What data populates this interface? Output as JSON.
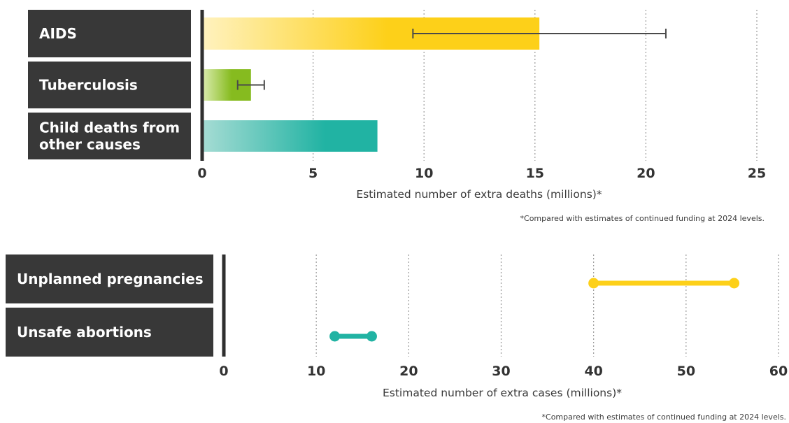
{
  "colors": {
    "label_bg": "#383838",
    "axis": "#2f2f2f",
    "grid": "#9a9a9a",
    "yellow": "#fdd019",
    "green": "#86bb1f",
    "teal": "#21b3a3",
    "errorbar": "#4a4a4a"
  },
  "chart_data": [
    {
      "type": "bar",
      "categories": [
        "AIDS",
        "Tuberculosis",
        "Child deaths from other causes"
      ],
      "category_lines": [
        [
          "AIDS"
        ],
        [
          "Tuberculosis"
        ],
        [
          "Child deaths from",
          "other causes"
        ]
      ],
      "values": [
        15.2,
        2.2,
        7.9
      ],
      "error_low": [
        9.5,
        1.6,
        null
      ],
      "error_high": [
        20.9,
        2.8,
        null
      ],
      "bar_colors": [
        "yellow",
        "green",
        "teal"
      ],
      "xlabel": "Estimated number of extra deaths (millions)*",
      "xlim": [
        0,
        25
      ],
      "ticks": [
        0,
        5,
        10,
        15,
        20,
        25
      ],
      "tick_labels": [
        "0",
        "5",
        "10",
        "15",
        "20",
        "25"
      ],
      "footnote": "*Compared with estimates of continued funding at 2024 levels.",
      "grid": true
    },
    {
      "type": "range",
      "categories": [
        "Unplanned pregnancies",
        "Unsafe abortions"
      ],
      "category_lines": [
        [
          "Unplanned pregnancies"
        ],
        [
          "Unsafe abortions"
        ]
      ],
      "low": [
        40,
        12
      ],
      "high": [
        55.2,
        16
      ],
      "range_colors": [
        "yellow",
        "teal"
      ],
      "xlabel": "Estimated number of extra cases (millions)*",
      "xlim": [
        0,
        60
      ],
      "ticks": [
        0,
        10,
        20,
        30,
        40,
        50,
        60
      ],
      "tick_labels": [
        "0",
        "10",
        "20",
        "30",
        "40",
        "50",
        "60"
      ],
      "footnote": "*Compared with estimates of continued funding at 2024 levels.",
      "grid": true
    }
  ]
}
